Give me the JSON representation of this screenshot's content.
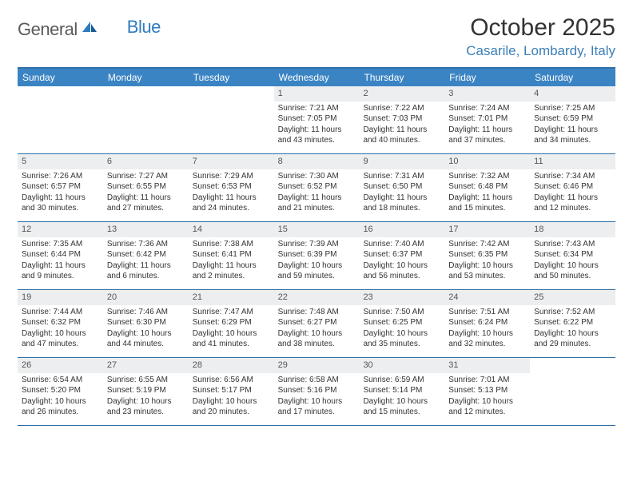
{
  "logo": {
    "general": "General",
    "blue": "Blue"
  },
  "title": "October 2025",
  "location": "Casarile, Lombardy, Italy",
  "colors": {
    "header_bar": "#3b84c4",
    "border": "#2f6fa8",
    "daynum_bg": "#eceeef",
    "logo_blue": "#2f7bbf",
    "logo_gray": "#5a5a5a"
  },
  "day_names": [
    "Sunday",
    "Monday",
    "Tuesday",
    "Wednesday",
    "Thursday",
    "Friday",
    "Saturday"
  ],
  "weeks": [
    [
      {
        "n": "",
        "sr": "",
        "ss": "",
        "dl": ""
      },
      {
        "n": "",
        "sr": "",
        "ss": "",
        "dl": ""
      },
      {
        "n": "",
        "sr": "",
        "ss": "",
        "dl": ""
      },
      {
        "n": "1",
        "sr": "Sunrise: 7:21 AM",
        "ss": "Sunset: 7:05 PM",
        "dl": "Daylight: 11 hours and 43 minutes."
      },
      {
        "n": "2",
        "sr": "Sunrise: 7:22 AM",
        "ss": "Sunset: 7:03 PM",
        "dl": "Daylight: 11 hours and 40 minutes."
      },
      {
        "n": "3",
        "sr": "Sunrise: 7:24 AM",
        "ss": "Sunset: 7:01 PM",
        "dl": "Daylight: 11 hours and 37 minutes."
      },
      {
        "n": "4",
        "sr": "Sunrise: 7:25 AM",
        "ss": "Sunset: 6:59 PM",
        "dl": "Daylight: 11 hours and 34 minutes."
      }
    ],
    [
      {
        "n": "5",
        "sr": "Sunrise: 7:26 AM",
        "ss": "Sunset: 6:57 PM",
        "dl": "Daylight: 11 hours and 30 minutes."
      },
      {
        "n": "6",
        "sr": "Sunrise: 7:27 AM",
        "ss": "Sunset: 6:55 PM",
        "dl": "Daylight: 11 hours and 27 minutes."
      },
      {
        "n": "7",
        "sr": "Sunrise: 7:29 AM",
        "ss": "Sunset: 6:53 PM",
        "dl": "Daylight: 11 hours and 24 minutes."
      },
      {
        "n": "8",
        "sr": "Sunrise: 7:30 AM",
        "ss": "Sunset: 6:52 PM",
        "dl": "Daylight: 11 hours and 21 minutes."
      },
      {
        "n": "9",
        "sr": "Sunrise: 7:31 AM",
        "ss": "Sunset: 6:50 PM",
        "dl": "Daylight: 11 hours and 18 minutes."
      },
      {
        "n": "10",
        "sr": "Sunrise: 7:32 AM",
        "ss": "Sunset: 6:48 PM",
        "dl": "Daylight: 11 hours and 15 minutes."
      },
      {
        "n": "11",
        "sr": "Sunrise: 7:34 AM",
        "ss": "Sunset: 6:46 PM",
        "dl": "Daylight: 11 hours and 12 minutes."
      }
    ],
    [
      {
        "n": "12",
        "sr": "Sunrise: 7:35 AM",
        "ss": "Sunset: 6:44 PM",
        "dl": "Daylight: 11 hours and 9 minutes."
      },
      {
        "n": "13",
        "sr": "Sunrise: 7:36 AM",
        "ss": "Sunset: 6:42 PM",
        "dl": "Daylight: 11 hours and 6 minutes."
      },
      {
        "n": "14",
        "sr": "Sunrise: 7:38 AM",
        "ss": "Sunset: 6:41 PM",
        "dl": "Daylight: 11 hours and 2 minutes."
      },
      {
        "n": "15",
        "sr": "Sunrise: 7:39 AM",
        "ss": "Sunset: 6:39 PM",
        "dl": "Daylight: 10 hours and 59 minutes."
      },
      {
        "n": "16",
        "sr": "Sunrise: 7:40 AM",
        "ss": "Sunset: 6:37 PM",
        "dl": "Daylight: 10 hours and 56 minutes."
      },
      {
        "n": "17",
        "sr": "Sunrise: 7:42 AM",
        "ss": "Sunset: 6:35 PM",
        "dl": "Daylight: 10 hours and 53 minutes."
      },
      {
        "n": "18",
        "sr": "Sunrise: 7:43 AM",
        "ss": "Sunset: 6:34 PM",
        "dl": "Daylight: 10 hours and 50 minutes."
      }
    ],
    [
      {
        "n": "19",
        "sr": "Sunrise: 7:44 AM",
        "ss": "Sunset: 6:32 PM",
        "dl": "Daylight: 10 hours and 47 minutes."
      },
      {
        "n": "20",
        "sr": "Sunrise: 7:46 AM",
        "ss": "Sunset: 6:30 PM",
        "dl": "Daylight: 10 hours and 44 minutes."
      },
      {
        "n": "21",
        "sr": "Sunrise: 7:47 AM",
        "ss": "Sunset: 6:29 PM",
        "dl": "Daylight: 10 hours and 41 minutes."
      },
      {
        "n": "22",
        "sr": "Sunrise: 7:48 AM",
        "ss": "Sunset: 6:27 PM",
        "dl": "Daylight: 10 hours and 38 minutes."
      },
      {
        "n": "23",
        "sr": "Sunrise: 7:50 AM",
        "ss": "Sunset: 6:25 PM",
        "dl": "Daylight: 10 hours and 35 minutes."
      },
      {
        "n": "24",
        "sr": "Sunrise: 7:51 AM",
        "ss": "Sunset: 6:24 PM",
        "dl": "Daylight: 10 hours and 32 minutes."
      },
      {
        "n": "25",
        "sr": "Sunrise: 7:52 AM",
        "ss": "Sunset: 6:22 PM",
        "dl": "Daylight: 10 hours and 29 minutes."
      }
    ],
    [
      {
        "n": "26",
        "sr": "Sunrise: 6:54 AM",
        "ss": "Sunset: 5:20 PM",
        "dl": "Daylight: 10 hours and 26 minutes."
      },
      {
        "n": "27",
        "sr": "Sunrise: 6:55 AM",
        "ss": "Sunset: 5:19 PM",
        "dl": "Daylight: 10 hours and 23 minutes."
      },
      {
        "n": "28",
        "sr": "Sunrise: 6:56 AM",
        "ss": "Sunset: 5:17 PM",
        "dl": "Daylight: 10 hours and 20 minutes."
      },
      {
        "n": "29",
        "sr": "Sunrise: 6:58 AM",
        "ss": "Sunset: 5:16 PM",
        "dl": "Daylight: 10 hours and 17 minutes."
      },
      {
        "n": "30",
        "sr": "Sunrise: 6:59 AM",
        "ss": "Sunset: 5:14 PM",
        "dl": "Daylight: 10 hours and 15 minutes."
      },
      {
        "n": "31",
        "sr": "Sunrise: 7:01 AM",
        "ss": "Sunset: 5:13 PM",
        "dl": "Daylight: 10 hours and 12 minutes."
      },
      {
        "n": "",
        "sr": "",
        "ss": "",
        "dl": ""
      }
    ]
  ]
}
